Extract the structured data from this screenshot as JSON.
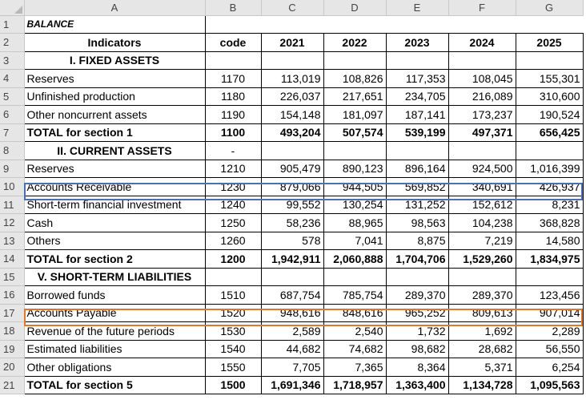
{
  "columns": [
    "A",
    "B",
    "C",
    "D",
    "E",
    "F",
    "G"
  ],
  "row_numbers": [
    "1",
    "2",
    "3",
    "4",
    "5",
    "6",
    "7",
    "8",
    "9",
    "10",
    "11",
    "12",
    "13",
    "14",
    "15",
    "16",
    "17",
    "18",
    "19",
    "20",
    "21"
  ],
  "title": "BALANCE",
  "header": [
    "Indicators",
    "code",
    "2021",
    "2022",
    "2023",
    "2024",
    "2025"
  ],
  "rows": [
    {
      "label": "I. FIXED ASSETS",
      "code": "",
      "values": [
        "",
        "",
        "",
        "",
        ""
      ],
      "type": "section"
    },
    {
      "label": "Reserves",
      "code": "1170",
      "values": [
        "113,019",
        "108,826",
        "117,353",
        "108,045",
        "155,301"
      ],
      "type": "data"
    },
    {
      "label": "Unfinished production",
      "code": "1180",
      "values": [
        "226,037",
        "217,651",
        "234,705",
        "216,089",
        "310,600"
      ],
      "type": "data"
    },
    {
      "label": "Other noncurrent assets",
      "code": "1190",
      "values": [
        "154,148",
        "181,097",
        "187,141",
        "173,237",
        "190,524"
      ],
      "type": "data"
    },
    {
      "label": "TOTAL for section 1",
      "code": "1100",
      "values": [
        "493,204",
        "507,574",
        "539,199",
        "497,371",
        "656,425"
      ],
      "type": "total"
    },
    {
      "label": "II. CURRENT ASSETS",
      "code": "-",
      "values": [
        "",
        "",
        "",
        "",
        ""
      ],
      "type": "section"
    },
    {
      "label": "Reserves",
      "code": "1210",
      "values": [
        "905,479",
        "890,123",
        "896,164",
        "924,500",
        "1,016,399"
      ],
      "type": "data"
    },
    {
      "label": "Accounts Receivable",
      "code": "1230",
      "values": [
        "879,066",
        "944,505",
        "569,852",
        "340,691",
        "426,937"
      ],
      "type": "data"
    },
    {
      "label": "Short-term financial investment",
      "code": "1240",
      "values": [
        "99,552",
        "130,254",
        "131,252",
        "152,612",
        "8,231"
      ],
      "type": "data"
    },
    {
      "label": "Cash",
      "code": "1250",
      "values": [
        "58,236",
        "88,965",
        "98,563",
        "104,238",
        "368,828"
      ],
      "type": "data"
    },
    {
      "label": "Others",
      "code": "1260",
      "values": [
        "578",
        "7,041",
        "8,875",
        "7,219",
        "14,580"
      ],
      "type": "data"
    },
    {
      "label": "TOTAL for section 2",
      "code": "1200",
      "values": [
        "1,942,911",
        "2,060,888",
        "1,704,706",
        "1,529,260",
        "1,834,975"
      ],
      "type": "total"
    },
    {
      "label": "V. SHORT-TERM LIABILITIES",
      "code": "",
      "values": [
        "",
        "",
        "",
        "",
        ""
      ],
      "type": "section"
    },
    {
      "label": "Borrowed funds",
      "code": "1510",
      "values": [
        "687,754",
        "785,754",
        "289,370",
        "289,370",
        "123,456"
      ],
      "type": "data"
    },
    {
      "label": "Accounts Payable",
      "code": "1520",
      "values": [
        "948,616",
        "848,616",
        "965,252",
        "809,613",
        "907,014"
      ],
      "type": "data"
    },
    {
      "label": "Revenue of the future periods",
      "code": "1530",
      "values": [
        "2,589",
        "2,540",
        "1,732",
        "1,692",
        "2,289"
      ],
      "type": "data"
    },
    {
      "label": "Estimated liabilities",
      "code": "1540",
      "values": [
        "44,682",
        "74,682",
        "98,682",
        "28,682",
        "56,550"
      ],
      "type": "data"
    },
    {
      "label": "Other obligations",
      "code": "1550",
      "values": [
        "7,705",
        "7,365",
        "8,364",
        "5,371",
        "6,254"
      ],
      "type": "data"
    },
    {
      "label": "TOTAL for section 5",
      "code": "1500",
      "values": [
        "1,691,346",
        "1,718,957",
        "1,363,400",
        "1,134,728",
        "1,095,563"
      ],
      "type": "total"
    }
  ],
  "highlight_colors": {
    "accounts_receivable": "#4a6fb5",
    "accounts_payable": "#e0772b"
  }
}
